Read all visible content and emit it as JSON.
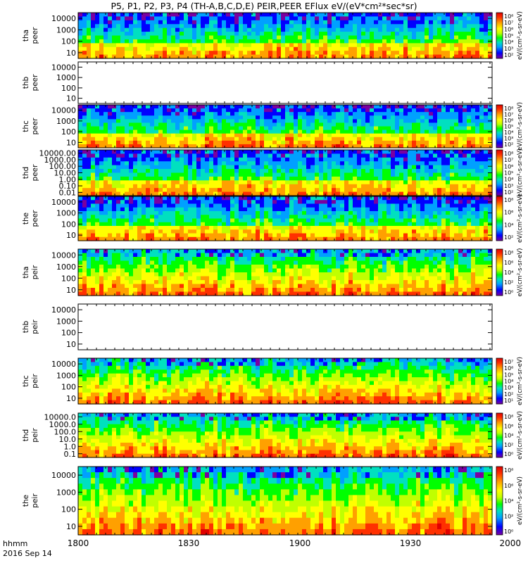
{
  "chart_data": {
    "type": "heatmap",
    "title": "P5, P1, P2, P3, P4 (TH-A,B,C,D,E) PEIR,PEER EFlux eV/(eV*cm²*sec*sr)",
    "time_axis": {
      "ticks": [
        "1800",
        "1830",
        "1900",
        "1930",
        "2000"
      ],
      "label_line1": "hhmm",
      "label_line2": "2016 Sep 14"
    },
    "panels": [
      {
        "id": "tha-peer",
        "probe_label": "tha",
        "product_label": "peer",
        "status": "data",
        "yticks": [
          "10000",
          "1000",
          "100",
          "10"
        ],
        "colorbar_ticks": [
          "10⁸",
          "10⁷",
          "10⁶",
          "10⁵",
          "10⁴",
          "10³",
          "10²"
        ],
        "colorbar_label": "eV/(cm²-s-sr-eV)"
      },
      {
        "id": "thb-peer",
        "probe_label": "thb",
        "product_label": "peer",
        "status": "empty",
        "yticks": [
          "10000",
          "1000",
          "100",
          "10"
        ],
        "colorbar_ticks": [],
        "colorbar_label": ""
      },
      {
        "id": "thc-peer",
        "probe_label": "thc",
        "product_label": "peer",
        "status": "data",
        "yticks": [
          "10000",
          "1000",
          "100",
          "10"
        ],
        "colorbar_ticks": [
          "10⁸",
          "10⁷",
          "10⁶",
          "10⁵",
          "10⁴",
          "10³",
          "10²"
        ],
        "colorbar_label": "eV/(cm²-s-sr-eV)"
      },
      {
        "id": "thd-peer",
        "probe_label": "thd",
        "product_label": "peer",
        "status": "data",
        "yticks": [
          "10000.00",
          "1000.00",
          "100.00",
          "10.00",
          "1.00",
          "0.10",
          "0.01"
        ],
        "colorbar_ticks": [
          "10⁸",
          "10⁷",
          "10⁶",
          "10⁵",
          "10⁴",
          "10³",
          "10²"
        ],
        "colorbar_label": "eV/(cm²-s-sr-eV)"
      },
      {
        "id": "the-peer",
        "probe_label": "the",
        "product_label": "peer",
        "status": "data",
        "yticks": [
          "10000",
          "1000",
          "100",
          "10"
        ],
        "colorbar_ticks": [
          "10⁸",
          "10⁶",
          "10⁴",
          "10²"
        ],
        "colorbar_label": "eV/(cm²-s-sr-eV)"
      },
      {
        "id": "tha-peir",
        "probe_label": "tha",
        "product_label": "peir",
        "status": "data",
        "yticks": [
          "10000",
          "1000",
          "100",
          "10"
        ],
        "colorbar_ticks": [
          "10⁸",
          "10⁶",
          "10⁴",
          "10²",
          "10⁰"
        ],
        "colorbar_label": "eV/(cm²-s-sr-eV)"
      },
      {
        "id": "thb-peir",
        "probe_label": "thb",
        "product_label": "peir",
        "status": "empty",
        "yticks": [
          "10000",
          "1000",
          "100",
          "10"
        ],
        "colorbar_ticks": [],
        "colorbar_label": ""
      },
      {
        "id": "thc-peir",
        "probe_label": "thc",
        "product_label": "peir",
        "status": "data",
        "yticks": [
          "10000",
          "1000",
          "100",
          "10"
        ],
        "colorbar_ticks": [
          "10⁷",
          "10⁶",
          "10⁵",
          "10⁴",
          "10³",
          "10²",
          "10¹"
        ],
        "colorbar_label": "eV/(cm²-s-sr-eV)"
      },
      {
        "id": "thd-peir",
        "probe_label": "thd",
        "product_label": "peir",
        "status": "data",
        "yticks": [
          "10000.0",
          "1000.0",
          "100.0",
          "10.0",
          "1.0",
          "0.1"
        ],
        "colorbar_ticks": [
          "10⁸",
          "10⁶",
          "10⁴",
          "10²",
          "10⁰"
        ],
        "colorbar_label": "eV/(cm²-s-sr-eV)"
      },
      {
        "id": "the-peir",
        "probe_label": "the",
        "product_label": "peir",
        "status": "data",
        "yticks": [
          "10000",
          "1000",
          "100",
          "10"
        ],
        "colorbar_ticks": [
          "10⁸",
          "10⁶",
          "10⁴",
          "10²",
          "10⁰"
        ],
        "colorbar_label": "eV/(cm²-s-sr-eV)"
      }
    ],
    "colormap": [
      "#7a00a0",
      "#0000ff",
      "#00a0ff",
      "#00e0c0",
      "#00ff00",
      "#c0ff00",
      "#ffff00",
      "#ffa000",
      "#ff3000",
      "#e00000"
    ]
  }
}
